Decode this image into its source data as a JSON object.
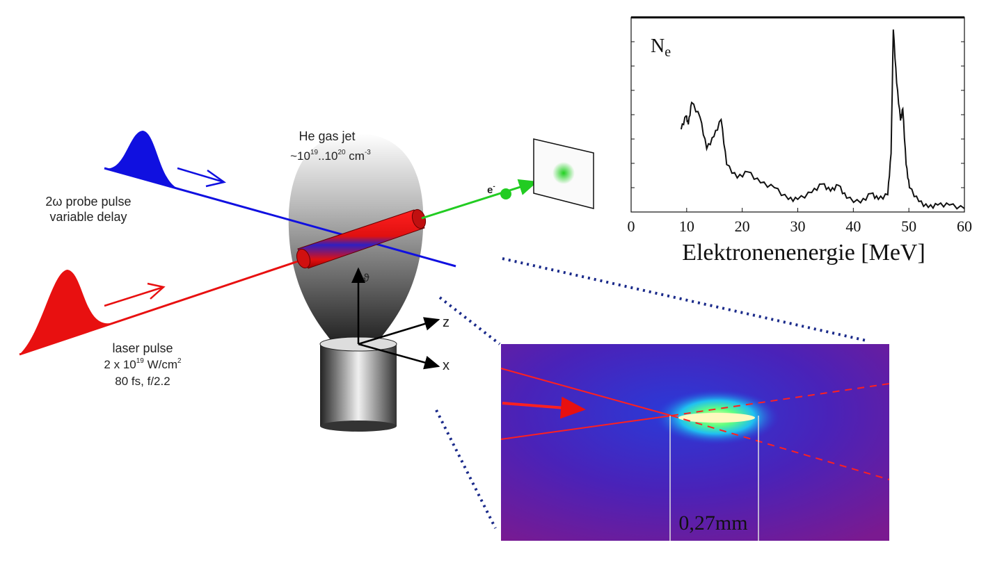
{
  "setup": {
    "gas_jet_label": "He gas jet",
    "gas_jet_density": {
      "prefix": "~10",
      "exp1": "19",
      "mid": "..10",
      "exp2": "20",
      "unit": " cm",
      "unit_exp": "-3"
    },
    "probe_label_line1": "2ω probe pulse",
    "probe_label_line2": "variable delay",
    "laser_label_line1": "laser pulse",
    "laser_label_line2": {
      "prefix": "2 x 10",
      "exp": "19",
      "unit": " W/cm",
      "unit_exp": "2"
    },
    "laser_label_line3": "80 fs, f/2.2",
    "electron_label": "e",
    "electron_sup": "-",
    "axis_labels": {
      "up": "ϑ",
      "z": "z",
      "x": "x"
    },
    "colors": {
      "probe": "#1010e0",
      "laser": "#e81010",
      "electron": "#22cc22",
      "dotted": "#1a2a8a"
    }
  },
  "inset_image": {
    "scale_label": "0,27mm",
    "colors": {
      "background": "#5a1aa0",
      "glow": "#ffff80"
    }
  },
  "chart_data": {
    "type": "line",
    "title": "",
    "ylabel_inside": {
      "main": "N",
      "sub": "e"
    },
    "xlabel": "Elektronenenergie [MeV]",
    "xlim": [
      0,
      60
    ],
    "ylim": [
      0,
      8
    ],
    "xticks": [
      "0",
      "10",
      "20",
      "30",
      "40",
      "50",
      "60"
    ],
    "ytick_labels_shown": false,
    "grid": false,
    "series": [
      {
        "x": [
          9.0,
          9.9,
          10.3,
          10.9,
          12.4,
          13.6,
          14.9,
          16.2,
          17.2,
          19.1,
          21.0,
          23.3,
          25.8,
          28.3,
          30.0,
          32.5,
          34.4,
          35.9,
          37.3,
          38.8,
          41.3,
          43.2,
          44.5,
          46.2,
          46.8,
          47.2,
          47.8,
          48.5,
          48.9,
          49.5,
          50.1,
          51.8,
          53.5,
          55.2,
          57.3,
          60.0
        ],
        "y": [
          3.4,
          3.95,
          3.6,
          4.5,
          3.9,
          2.6,
          3.1,
          3.8,
          1.95,
          1.4,
          1.65,
          1.2,
          1.0,
          0.52,
          0.52,
          0.8,
          1.15,
          0.86,
          1.1,
          0.57,
          0.38,
          0.76,
          0.52,
          0.71,
          2.4,
          7.5,
          5.3,
          3.76,
          4.24,
          1.95,
          1.0,
          0.43,
          0.19,
          0.29,
          0.29,
          0.14
        ]
      }
    ]
  }
}
